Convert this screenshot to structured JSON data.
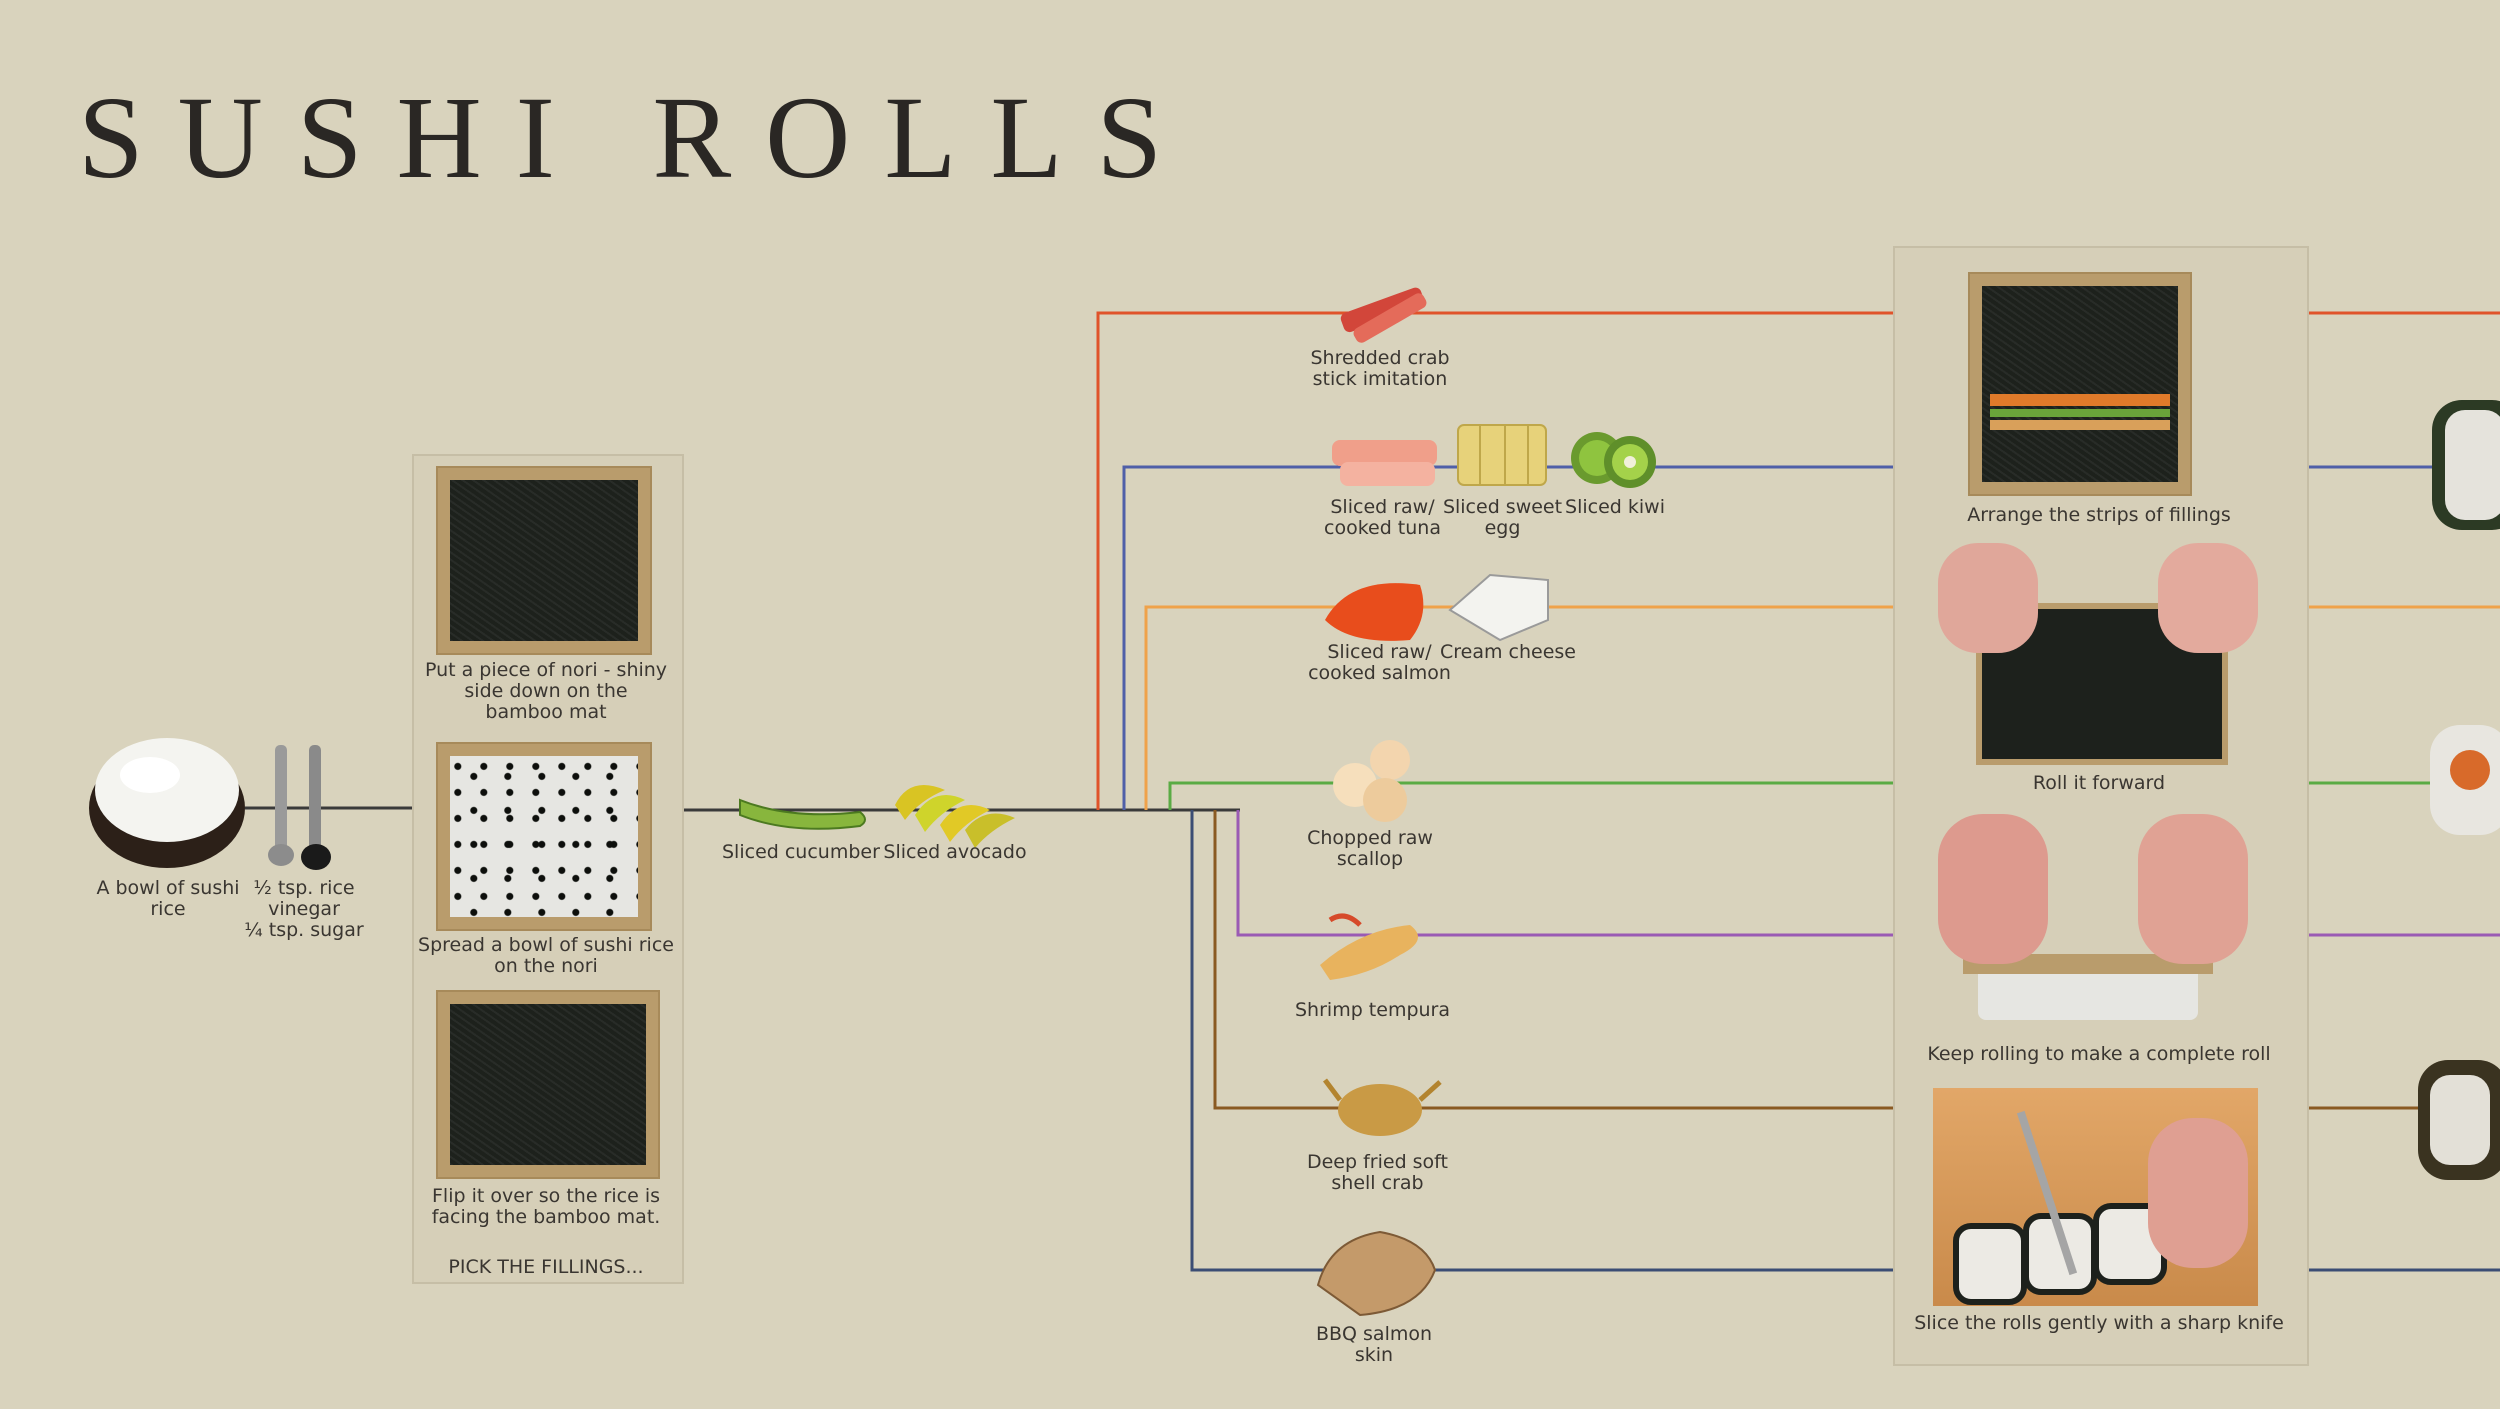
{
  "title": "SUSHI ROLLS",
  "ingredients": {
    "rice_bowl": "A bowl of sushi\nrice",
    "vinegar": "½ tsp. rice\nvinegar\n¼ tsp. sugar"
  },
  "steps": {
    "nori": "Put a piece of nori - shiny\nside down on the\nbamboo mat",
    "spread": "Spread a bowl of sushi rice\non the nori",
    "flip": "Flip it over so the rice is\nfacing the bamboo mat.",
    "pick": "PICK THE FILLINGS..."
  },
  "base_fillings": {
    "cucumber": "Sliced cucumber",
    "avocado": "Sliced avocado"
  },
  "fillings": {
    "crab_stick": "Shredded crab\nstick imitation",
    "tuna": "Sliced raw/\ncooked tuna",
    "egg": "Sliced sweet\negg",
    "kiwi": "Sliced kiwi",
    "salmon": "Sliced raw/\ncooked salmon",
    "cream_cheese": "Cream cheese",
    "scallop": "Chopped raw\nscallop",
    "shrimp": "Shrimp tempura",
    "soft_crab": "Deep fried soft\nshell crab",
    "salmon_skin": "BBQ salmon\nskin"
  },
  "rolling_steps": {
    "arrange": "Arrange the strips of fillings",
    "roll": "Roll it forward",
    "keep": "Keep rolling to make a complete roll",
    "slice": "Slice the rolls gently with a sharp knife"
  },
  "colors": {
    "background": "#d9d3bd",
    "red": "#e0532a",
    "blue": "#4f5fa8",
    "orange": "#efa24a",
    "green": "#5aab44",
    "purple": "#9a5ab4",
    "brown": "#8a5a22",
    "navy": "#3b4d74",
    "trunk": "#3a3a3a"
  }
}
